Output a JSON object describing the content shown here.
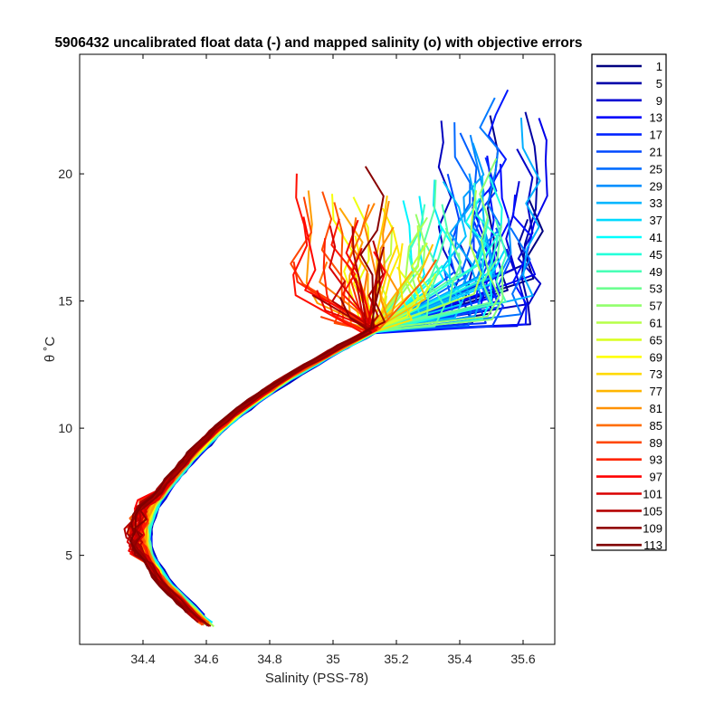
{
  "chart_data": {
    "type": "line",
    "title": "5906432 uncalibrated float data (-) and mapped salinity (o) with objective errors",
    "xlabel": "Salinity (PSS-78)",
    "ylabel": "θ ˚C",
    "xlim": [
      34.2,
      35.7
    ],
    "ylim": [
      1.5,
      24.7
    ],
    "xticks": [
      34.4,
      34.6,
      34.8,
      35,
      35.2,
      35.4,
      35.6
    ],
    "xtick_labels": [
      "34.4",
      "34.6",
      "34.8",
      "35",
      "35.2",
      "35.4",
      "35.6"
    ],
    "yticks": [
      5,
      10,
      15,
      20
    ],
    "ytick_labels": [
      "5",
      "10",
      "15",
      "20"
    ],
    "grid": false,
    "legend_position": "outside-right",
    "colormap": "jet",
    "legend": [
      "1",
      "5",
      "9",
      "13",
      "17",
      "21",
      "25",
      "29",
      "33",
      "37",
      "41",
      "45",
      "49",
      "53",
      "57",
      "61",
      "65",
      "69",
      "73",
      "77",
      "81",
      "85",
      "89",
      "93",
      "97",
      "101",
      "105",
      "109",
      "113"
    ],
    "legend_colors": [
      "#000080",
      "#0000a9",
      "#0000d2",
      "#0000fb",
      "#0024ff",
      "#0048ff",
      "#006dff",
      "#0091ff",
      "#00b6ff",
      "#00daff",
      "#00ffff",
      "#24ffda",
      "#48ffb6",
      "#6dff91",
      "#91ff6d",
      "#b6ff48",
      "#daff24",
      "#ffff00",
      "#ffda00",
      "#ffb600",
      "#ff9100",
      "#ff6d00",
      "#ff4800",
      "#ff2400",
      "#ff0000",
      "#da0000",
      "#b60000",
      "#910000",
      "#800000"
    ],
    "profile_count": 116,
    "deep_curve": {
      "theta": [
        2.2,
        3.0,
        4.0,
        5.0,
        6.0,
        7.0,
        8.0,
        9.0,
        10.0,
        11.0,
        12.0,
        13.0,
        14.0,
        15.0
      ],
      "salinity": [
        34.61,
        34.54,
        34.46,
        34.41,
        34.4,
        34.43,
        34.49,
        34.56,
        34.64,
        34.74,
        34.86,
        35.0,
        35.15,
        35.3
      ]
    },
    "surface_layer_salinity_by_color": {
      "blue": [
        35.35,
        35.65
      ],
      "cyan-green": [
        35.2,
        35.55
      ],
      "yellow-orange": [
        34.9,
        35.3
      ],
      "red": [
        34.85,
        35.2
      ]
    },
    "surface_theta_range": [
      15,
      24
    ]
  }
}
